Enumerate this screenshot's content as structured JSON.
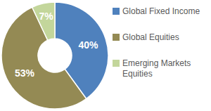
{
  "chart_data": {
    "type": "pie",
    "categories": [
      "Global Fixed Income",
      "Global Equities",
      "Emerging Markets Equities"
    ],
    "values": [
      40,
      53,
      7
    ],
    "value_labels": [
      "40%",
      "53%",
      "7%"
    ],
    "colors": [
      "#4f81bd",
      "#948a54",
      "#c3d69b"
    ],
    "data_labels": true,
    "legend": "right"
  }
}
